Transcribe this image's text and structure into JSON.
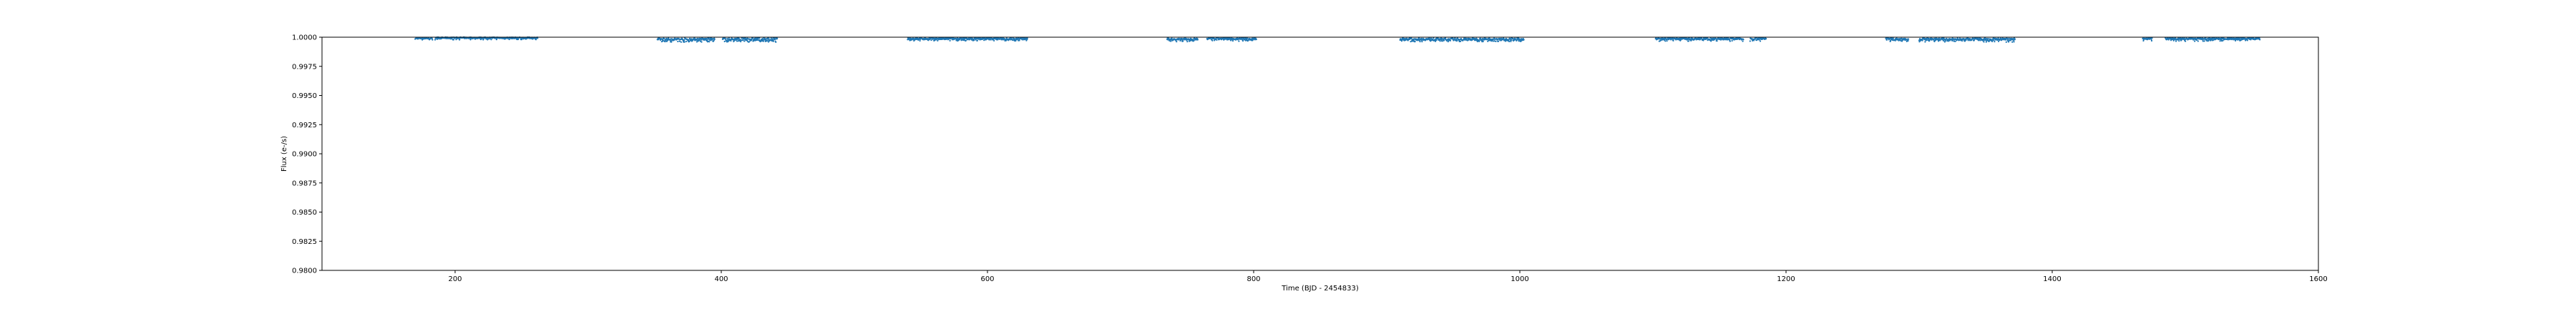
{
  "chart_data": {
    "type": "scatter",
    "title": "",
    "xlabel": "Time (BJD - 2454833)",
    "ylabel": "Flux (e-/s)",
    "xlim": [
      100,
      1600
    ],
    "ylim": [
      0.98,
      1.0
    ],
    "grid": false,
    "x_ticks": [
      "200",
      "400",
      "600",
      "800",
      "1000",
      "1200",
      "1400",
      "1600"
    ],
    "x_tick_values": [
      200,
      400,
      600,
      800,
      1000,
      1200,
      1400,
      1600
    ],
    "y_ticks": [
      "0.9800",
      "0.9825",
      "0.9850",
      "0.9875",
      "0.9900",
      "0.9925",
      "0.9950",
      "0.9975",
      "1.0000"
    ],
    "y_tick_values": [
      0.98,
      0.9825,
      0.985,
      0.9875,
      0.99,
      0.9925,
      0.995,
      0.9975,
      1.0
    ],
    "marker_color": "#1f77b4",
    "segments": [
      {
        "x": [
          170,
          183
        ],
        "y": [
          0.99985,
          0.99995
        ],
        "ylow": 0.99975
      },
      {
        "x": [
          185,
          262
        ],
        "y": [
          0.99988,
          1.0
        ],
        "ylow": 0.99978
      },
      {
        "x": [
          352,
          395
        ],
        "y": [
          0.99972,
          0.99992
        ],
        "ylow": 0.99958
      },
      {
        "x": [
          401,
          442
        ],
        "y": [
          0.99968,
          0.99995
        ],
        "ylow": 0.99958
      },
      {
        "x": [
          540,
          630
        ],
        "y": [
          0.99978,
          0.99995
        ],
        "ylow": 0.99968
      },
      {
        "x": [
          735,
          758
        ],
        "y": [
          0.99975,
          0.99992
        ],
        "ylow": 0.99962
      },
      {
        "x": [
          765,
          802
        ],
        "y": [
          0.99978,
          0.99995
        ],
        "ylow": 0.99965
      },
      {
        "x": [
          910,
          1003
        ],
        "y": [
          0.99972,
          0.99992
        ],
        "ylow": 0.99962
      },
      {
        "x": [
          1102,
          1168
        ],
        "y": [
          0.99978,
          0.99995
        ],
        "ylow": 0.99965
      },
      {
        "x": [
          1173,
          1185
        ],
        "y": [
          0.99978,
          0.99995
        ],
        "ylow": 0.99965
      },
      {
        "x": [
          1275,
          1292
        ],
        "y": [
          0.99975,
          0.99992
        ],
        "ylow": 0.99962
      },
      {
        "x": [
          1300,
          1372
        ],
        "y": [
          0.99972,
          0.99992
        ],
        "ylow": 0.99958
      },
      {
        "x": [
          1468,
          1475
        ],
        "y": [
          0.9998,
          0.99995
        ],
        "ylow": 0.99968
      },
      {
        "x": [
          1485,
          1556
        ],
        "y": [
          0.99978,
          0.99995
        ],
        "ylow": 0.99965
      }
    ]
  }
}
